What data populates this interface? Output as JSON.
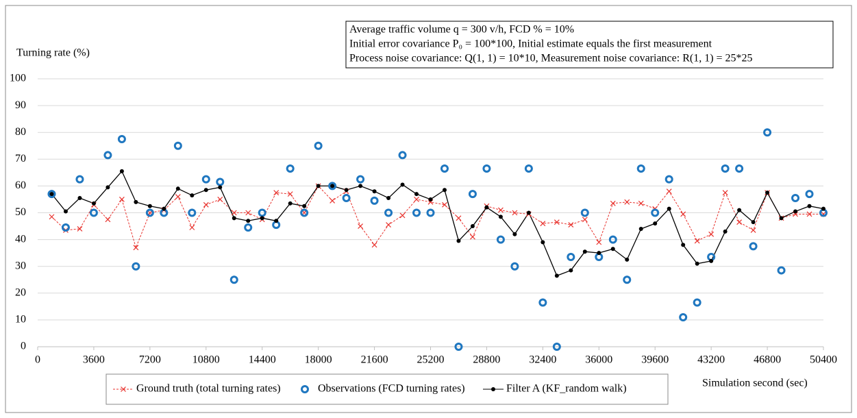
{
  "chart_data": {
    "type": "line",
    "ylabel": "Turning rate (%)",
    "xlabel": "Simulation second (sec)",
    "annotations": [
      "Average traffic volume q = 300 v/h, FCD % = 10%",
      "Initial error covariance P₀ = 100*100, Initial estimate equals the first measurement",
      "Process noise covariance: Q(1, 1) = 10*10, Measurement noise covariance: R(1, 1) = 25*25"
    ],
    "x": [
      900,
      1800,
      2700,
      3600,
      4500,
      5400,
      6300,
      7200,
      8100,
      9000,
      9900,
      10800,
      11700,
      12600,
      13500,
      14400,
      15300,
      16200,
      17100,
      18000,
      18900,
      19800,
      20700,
      21600,
      22500,
      23400,
      24300,
      25200,
      26100,
      27000,
      27900,
      28800,
      29700,
      30600,
      31500,
      32400,
      33300,
      34200,
      35100,
      36000,
      36900,
      37800,
      38700,
      39600,
      40500,
      41400,
      42300,
      43200,
      44100,
      45000,
      45900,
      46800,
      47700,
      48600,
      49500,
      50400
    ],
    "series": [
      {
        "name": "Ground truth (total turning rates)",
        "color": "#e8322d",
        "style": "dashed-cross",
        "values": [
          48.5,
          43.5,
          44,
          53,
          47.5,
          55,
          37,
          50,
          51,
          56,
          44.5,
          53,
          55,
          50,
          50,
          47.5,
          57.5,
          57,
          50,
          60,
          54.5,
          58,
          45,
          38,
          45.5,
          49,
          55,
          54,
          53,
          48,
          41,
          52.5,
          51,
          50,
          49.5,
          46,
          46.5,
          45.5,
          47.5,
          39,
          53.5,
          54,
          53.5,
          51.5,
          58,
          49.5,
          39.5,
          42,
          57.5,
          46.5,
          43.5,
          57.5,
          48,
          49.5,
          49.5,
          49.5
        ]
      },
      {
        "name": "Observations (FCD turning rates)",
        "color": "#1f77c0",
        "style": "ring",
        "values": [
          57,
          44.5,
          62.5,
          50,
          71.5,
          77.5,
          30,
          50,
          50,
          75,
          50,
          62.5,
          61.5,
          25,
          44.5,
          50,
          45.5,
          66.5,
          50,
          75,
          60,
          55.5,
          62.5,
          54.5,
          50,
          71.5,
          50,
          50,
          66.5,
          0,
          57,
          66.5,
          40,
          30,
          66.5,
          16.5,
          0,
          33.5,
          50,
          33.5,
          40,
          25,
          66.5,
          50,
          62.5,
          11,
          16.5,
          33.5,
          66.5,
          66.5,
          37.5,
          80,
          28.5,
          55.5,
          57,
          50
        ]
      },
      {
        "name": "Filter A (KF_random walk)",
        "color": "#000000",
        "style": "solid-dot",
        "values": [
          57,
          50.5,
          55.5,
          53.5,
          59.5,
          65.5,
          54,
          52.5,
          51.5,
          59,
          56.5,
          58.5,
          59.5,
          48,
          47,
          48,
          47,
          53.5,
          52.5,
          60,
          60,
          58.5,
          60,
          58,
          55.5,
          60.5,
          57,
          55,
          58.5,
          39.5,
          45,
          52,
          48.5,
          42,
          50,
          39,
          26.5,
          28.5,
          35.5,
          35,
          36.5,
          32.5,
          44,
          46,
          51.5,
          38,
          31,
          32,
          43,
          51,
          46.5,
          57.5,
          48,
          50.5,
          52.5,
          51.5
        ]
      }
    ],
    "xlim": [
      0,
      50400
    ],
    "xticks": [
      0,
      3600,
      7200,
      10800,
      14400,
      18000,
      21600,
      25200,
      28800,
      32400,
      36000,
      39600,
      43200,
      46800,
      50400
    ],
    "ylim": [
      0,
      100
    ],
    "yticks": [
      0,
      10,
      20,
      30,
      40,
      50,
      60,
      70,
      80,
      90,
      100
    ],
    "grid": true,
    "legend": "bottom"
  }
}
